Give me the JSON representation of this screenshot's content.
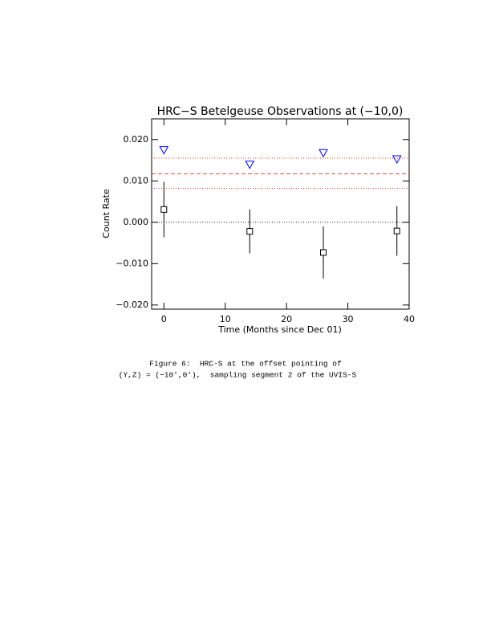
{
  "chart_data": {
    "type": "scatter",
    "title": "HRC−S Betelgeuse Observations at (−10,0)",
    "xlabel": "Time (Months since Dec 01)",
    "ylabel": "Count Rate",
    "xlim": [
      -2,
      40
    ],
    "xticks": [
      0,
      10,
      20,
      30,
      40
    ],
    "ylim": [
      -0.021,
      0.025
    ],
    "yticks": [
      {
        "value": -0.02,
        "label": "−0.020"
      },
      {
        "value": -0.01,
        "label": "−0.010"
      },
      {
        "value": 0,
        "label": "0.000"
      },
      {
        "value": 0.01,
        "label": "0.010"
      },
      {
        "value": 0.02,
        "label": "0.020"
      }
    ],
    "series": [
      {
        "marker": "square",
        "color": "#000000",
        "x": [
          0,
          14,
          26,
          38
        ],
        "values": [
          0.0031,
          -0.0022,
          -0.0073,
          -0.0021
        ],
        "errors": [
          0.0067,
          0.0053,
          0.0063,
          0.006
        ]
      },
      {
        "marker": "triangle-down",
        "color": "#0000ff",
        "x": [
          0,
          14,
          26,
          38
        ],
        "values": [
          0.0175,
          0.014,
          0.0168,
          0.0153
        ]
      }
    ],
    "hlines": [
      {
        "value": 0,
        "style": "dotted",
        "color": "#000000"
      },
      {
        "value": 0.0117,
        "style": "dashed",
        "color": "#ff0000"
      },
      {
        "value": 0.0155,
        "style": "dotted",
        "color": "#ff0000"
      },
      {
        "value": 0.0082,
        "style": "dotted",
        "color": "#ff0000"
      }
    ]
  },
  "caption": [
    "Figure 6:  HRC-S at the offset pointing of",
    "(Y,Z) = (−10′,0′),  sampling segment 2 of the UVIS-S"
  ]
}
